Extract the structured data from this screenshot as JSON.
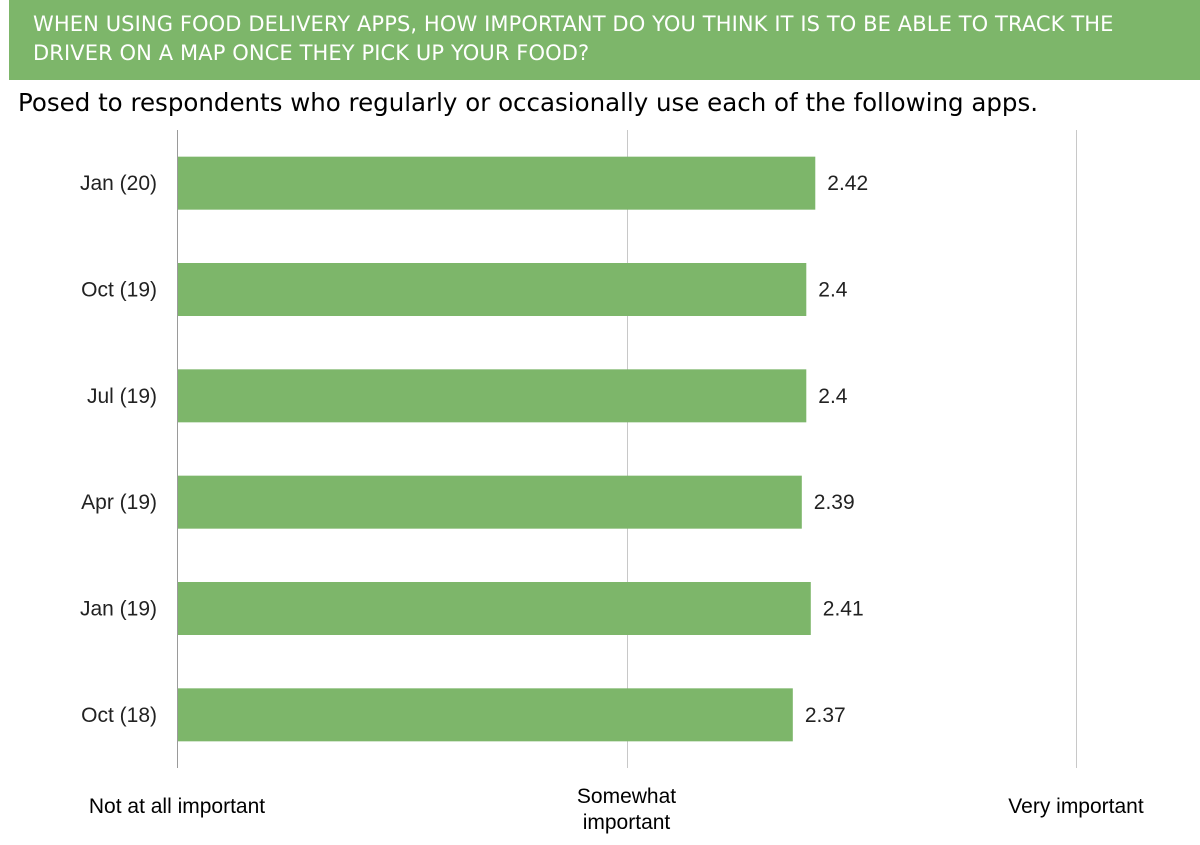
{
  "header": {
    "title": "WHEN USING FOOD DELIVERY APPS, HOW IMPORTANT DO YOU THINK IT IS TO BE ABLE TO TRACK THE DRIVER ON A MAP ONCE THEY PICK UP YOUR FOOD?",
    "subtitle": "Posed to respondents who regularly or occasionally use each of the following apps.",
    "banner_color": "#7db66a"
  },
  "chart_data": {
    "type": "bar",
    "orientation": "horizontal",
    "categories": [
      "Jan (20)",
      "Oct (19)",
      "Jul (19)",
      "Apr (19)",
      "Jan (19)",
      "Oct (18)"
    ],
    "values": [
      2.42,
      2.4,
      2.4,
      2.39,
      2.41,
      2.37
    ],
    "value_labels": [
      "2.42",
      "2.4",
      "2.4",
      "2.39",
      "2.41",
      "2.37"
    ],
    "xlim": [
      1,
      3
    ],
    "x_tick_labels": [
      "Not at all important",
      "Somewhat\nimportant",
      "Very important"
    ],
    "x_ticks": [
      1,
      2,
      3
    ],
    "grid": true,
    "bar_color": "#7db66a",
    "legend": "none"
  }
}
